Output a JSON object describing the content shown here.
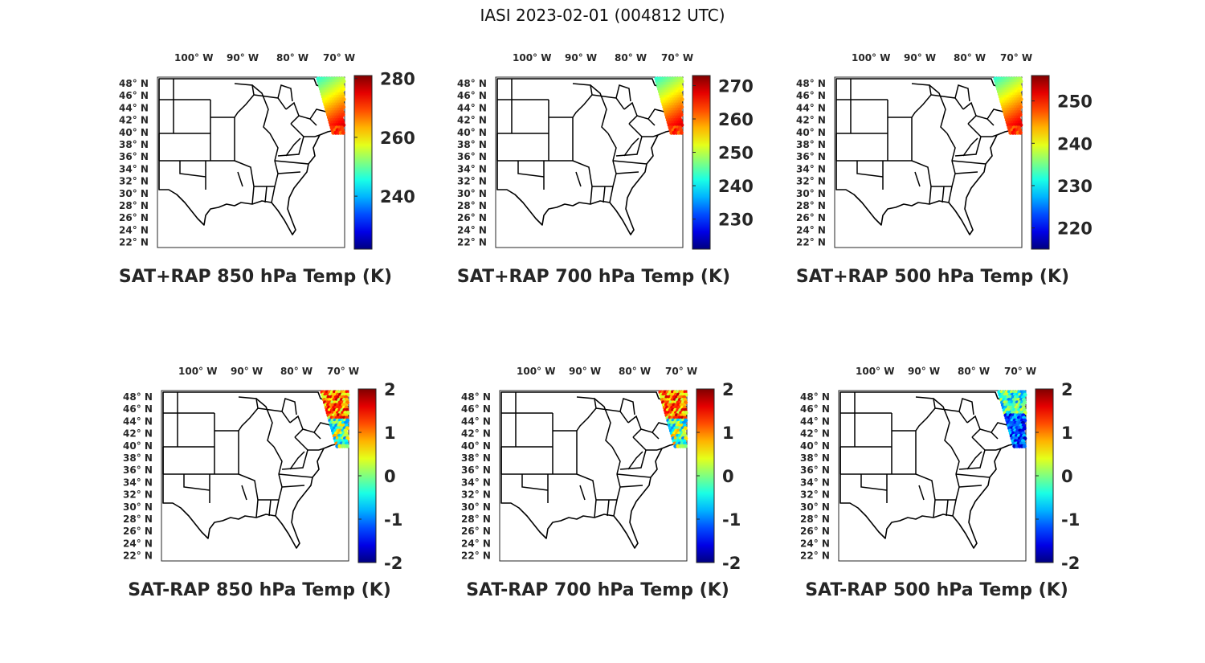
{
  "figure": {
    "title": "IASI 2023-02-01 (004812 UTC)"
  },
  "map_axes": {
    "lon_labels": [
      "100° W",
      "90° W",
      "80° W",
      "70° W"
    ],
    "lat_labels": [
      "48° N",
      "46° N",
      "44° N",
      "42° N",
      "40° N",
      "38° N",
      "36° N",
      "34° N",
      "32° N",
      "30° N",
      "28° N",
      "26° N",
      "24° N",
      "22° N"
    ],
    "lat_range": [
      22,
      50
    ],
    "lon_range": [
      -107,
      -66
    ]
  },
  "panels": [
    {
      "id": "sat-rap-850",
      "label": "SAT+RAP 850 hPa Temp (K)",
      "colorbar": {
        "min": 222,
        "max": 281,
        "ticks": [
          280,
          260,
          240
        ]
      },
      "obs_pattern": "sum"
    },
    {
      "id": "sat-rap-700",
      "label": "SAT+RAP 700 hPa Temp (K)",
      "colorbar": {
        "min": 221,
        "max": 273,
        "ticks": [
          270,
          260,
          250,
          240,
          230
        ]
      },
      "obs_pattern": "sum"
    },
    {
      "id": "sat-rap-500",
      "label": "SAT+RAP 500 hPa Temp (K)",
      "colorbar": {
        "min": 215,
        "max": 256,
        "ticks": [
          250,
          240,
          230,
          220
        ]
      },
      "obs_pattern": "sum"
    },
    {
      "id": "sat-minus-rap-850",
      "label": "SAT-RAP 850 hPa Temp (K)",
      "colorbar": {
        "min": -2,
        "max": 2,
        "ticks": [
          2,
          1,
          0,
          -1,
          -2
        ]
      },
      "obs_pattern": "diff-warm"
    },
    {
      "id": "sat-minus-rap-700",
      "label": "SAT-RAP 700 hPa Temp (K)",
      "colorbar": {
        "min": -2,
        "max": 2,
        "ticks": [
          2,
          1,
          0,
          -1,
          -2
        ]
      },
      "obs_pattern": "diff-warm"
    },
    {
      "id": "sat-minus-rap-500",
      "label": "SAT-RAP 500 hPa Temp (K)",
      "colorbar": {
        "min": -2,
        "max": 2,
        "ticks": [
          2,
          1,
          0,
          -1,
          -2
        ]
      },
      "obs_pattern": "diff-cold"
    }
  ],
  "colormap": "jet"
}
